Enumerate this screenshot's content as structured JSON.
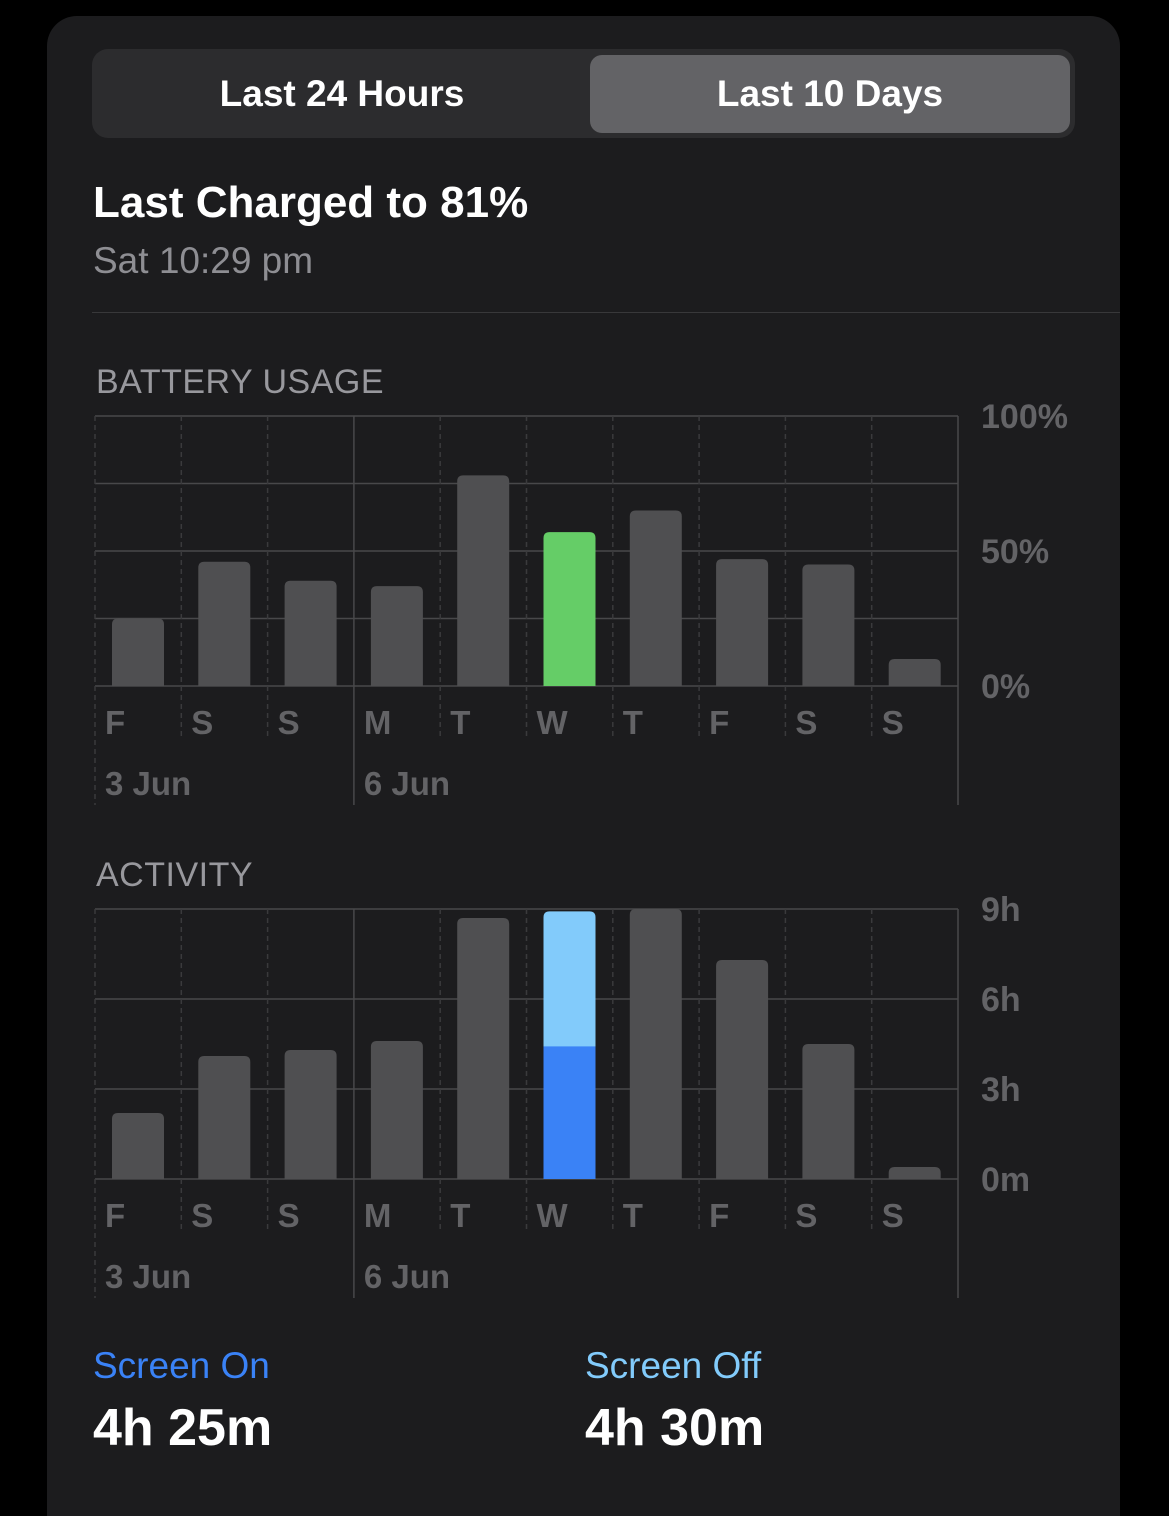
{
  "segmented": {
    "options": [
      "Last 24 Hours",
      "Last 10 Days"
    ],
    "selected": "Last 10 Days"
  },
  "last_charged": {
    "title": "Last Charged to 81%",
    "time": "Sat 10:29 pm"
  },
  "colors": {
    "bar": "#4f4f51",
    "highlight_battery": "#65cd67",
    "screen_on": "#3a82f6",
    "screen_off": "#82cbfb",
    "axis_text": "#636366"
  },
  "chart_data": [
    {
      "type": "bar",
      "title": "BATTERY USAGE",
      "categories": [
        "F",
        "S",
        "S",
        "M",
        "T",
        "W",
        "T",
        "F",
        "S",
        "S"
      ],
      "date_labels": [
        {
          "index": 0,
          "label": "3 Jun"
        },
        {
          "index": 3,
          "label": "6 Jun"
        }
      ],
      "values": [
        25,
        46,
        39,
        37,
        78,
        57,
        65,
        47,
        45,
        10
      ],
      "highlight_index": 5,
      "yticks": [
        "100%",
        "50%",
        "0%"
      ],
      "ylim": [
        0,
        100
      ],
      "grid": true
    },
    {
      "type": "bar",
      "title": "ACTIVITY",
      "categories": [
        "F",
        "S",
        "S",
        "M",
        "T",
        "W",
        "T",
        "F",
        "S",
        "S"
      ],
      "date_labels": [
        {
          "index": 0,
          "label": "3 Jun"
        },
        {
          "index": 3,
          "label": "6 Jun"
        }
      ],
      "values_hours": [
        2.2,
        4.1,
        4.3,
        4.6,
        8.7,
        8.9,
        9.0,
        7.3,
        4.5,
        0.4
      ],
      "highlight_index": 5,
      "highlight_stack": {
        "screen_on_hours": 4.42,
        "screen_off_hours": 4.5
      },
      "yticks": [
        "9h",
        "6h",
        "3h",
        "0m"
      ],
      "ylim": [
        0,
        9
      ],
      "grid": true
    }
  ],
  "legend": {
    "screen_on": {
      "label": "Screen On",
      "value": "4h 25m"
    },
    "screen_off": {
      "label": "Screen Off",
      "value": "4h 30m"
    }
  }
}
